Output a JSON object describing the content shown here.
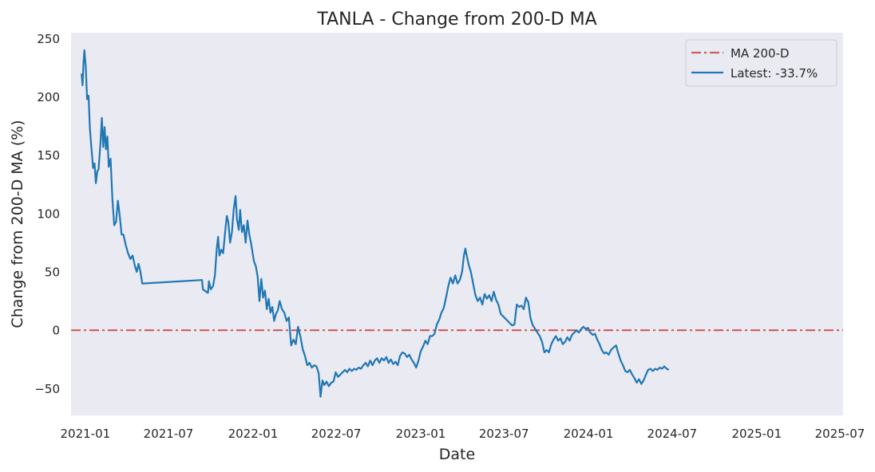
{
  "chart_data": {
    "type": "line",
    "title": "TANLA - Change from 200-D MA",
    "xlabel": "Date",
    "ylabel": "Change from 200-D MA (%)",
    "xlim": [
      "2020-12-01",
      "2025-07-08"
    ],
    "ylim": [
      -73,
      255
    ],
    "x_ticks": [
      "2021-01",
      "2021-07",
      "2022-01",
      "2022-07",
      "2023-01",
      "2023-07",
      "2024-01",
      "2024-07",
      "2025-01",
      "2025-07"
    ],
    "y_ticks": [
      -50,
      0,
      50,
      100,
      150,
      200,
      250
    ],
    "grid": false,
    "background": "#eaeaf2",
    "legend_position": "top-right",
    "reference_line": {
      "name": "MA 200-D",
      "y": 0,
      "color": "#cd5c5c",
      "style": "dash-dot"
    },
    "series": [
      {
        "name": "Latest: -33.7%",
        "color": "#1f77b4",
        "points": [
          [
            "2020-12-24",
            220
          ],
          [
            "2020-12-26",
            210
          ],
          [
            "2020-12-28",
            228
          ],
          [
            "2020-12-30",
            240
          ],
          [
            "2021-01-02",
            226
          ],
          [
            "2021-01-05",
            198
          ],
          [
            "2021-01-08",
            201
          ],
          [
            "2021-01-11",
            173
          ],
          [
            "2021-01-14",
            158
          ],
          [
            "2021-01-18",
            139
          ],
          [
            "2021-01-21",
            143
          ],
          [
            "2021-01-24",
            126
          ],
          [
            "2021-01-27",
            136
          ],
          [
            "2021-01-30",
            138
          ],
          [
            "2021-02-03",
            160
          ],
          [
            "2021-02-06",
            182
          ],
          [
            "2021-02-09",
            157
          ],
          [
            "2021-02-12",
            174
          ],
          [
            "2021-02-15",
            155
          ],
          [
            "2021-02-18",
            166
          ],
          [
            "2021-02-21",
            140
          ],
          [
            "2021-02-25",
            147
          ],
          [
            "2021-03-01",
            112
          ],
          [
            "2021-03-05",
            90
          ],
          [
            "2021-03-09",
            93
          ],
          [
            "2021-03-13",
            111
          ],
          [
            "2021-03-17",
            98
          ],
          [
            "2021-03-21",
            82
          ],
          [
            "2021-03-25",
            82
          ],
          [
            "2021-03-30",
            73
          ],
          [
            "2021-04-04",
            66
          ],
          [
            "2021-04-09",
            61
          ],
          [
            "2021-04-14",
            64
          ],
          [
            "2021-04-19",
            55
          ],
          [
            "2021-04-23",
            50
          ],
          [
            "2021-04-27",
            57
          ],
          [
            "2021-05-01",
            50
          ],
          [
            "2021-05-05",
            40
          ],
          [
            "2021-09-12",
            43
          ],
          [
            "2021-09-14",
            35
          ],
          [
            "2021-09-25",
            32
          ],
          [
            "2021-09-27",
            42
          ],
          [
            "2021-10-01",
            35
          ],
          [
            "2021-10-06",
            38
          ],
          [
            "2021-10-10",
            47
          ],
          [
            "2021-10-14",
            70
          ],
          [
            "2021-10-17",
            80
          ],
          [
            "2021-10-20",
            64
          ],
          [
            "2021-10-24",
            69
          ],
          [
            "2021-10-28",
            66
          ],
          [
            "2021-11-02",
            87
          ],
          [
            "2021-11-05",
            98
          ],
          [
            "2021-11-08",
            93
          ],
          [
            "2021-11-12",
            75
          ],
          [
            "2021-11-16",
            84
          ],
          [
            "2021-11-20",
            104
          ],
          [
            "2021-11-24",
            115
          ],
          [
            "2021-11-27",
            95
          ],
          [
            "2021-12-01",
            86
          ],
          [
            "2021-12-04",
            103
          ],
          [
            "2021-12-08",
            84
          ],
          [
            "2021-12-12",
            90
          ],
          [
            "2021-12-16",
            75
          ],
          [
            "2021-12-20",
            94
          ],
          [
            "2021-12-24",
            82
          ],
          [
            "2021-12-28",
            74
          ],
          [
            "2022-01-03",
            59
          ],
          [
            "2022-01-07",
            55
          ],
          [
            "2022-01-11",
            46
          ],
          [
            "2022-01-15",
            25
          ],
          [
            "2022-01-19",
            44
          ],
          [
            "2022-01-23",
            28
          ],
          [
            "2022-01-27",
            34
          ],
          [
            "2022-01-31",
            18
          ],
          [
            "2022-02-04",
            27
          ],
          [
            "2022-02-08",
            15
          ],
          [
            "2022-02-12",
            20
          ],
          [
            "2022-02-16",
            8
          ],
          [
            "2022-02-20",
            14
          ],
          [
            "2022-02-24",
            17
          ],
          [
            "2022-02-28",
            25
          ],
          [
            "2022-03-05",
            18
          ],
          [
            "2022-03-10",
            15
          ],
          [
            "2022-03-15",
            8
          ],
          [
            "2022-03-20",
            11
          ],
          [
            "2022-03-25",
            -13
          ],
          [
            "2022-03-30",
            -8
          ],
          [
            "2022-04-04",
            -12
          ],
          [
            "2022-04-09",
            3
          ],
          [
            "2022-04-14",
            -5
          ],
          [
            "2022-04-19",
            -16
          ],
          [
            "2022-04-24",
            -22
          ],
          [
            "2022-04-29",
            -30
          ],
          [
            "2022-05-04",
            -28
          ],
          [
            "2022-05-09",
            -32
          ],
          [
            "2022-05-14",
            -30
          ],
          [
            "2022-05-19",
            -31
          ],
          [
            "2022-05-24",
            -37
          ],
          [
            "2022-05-28",
            -57
          ],
          [
            "2022-06-01",
            -43
          ],
          [
            "2022-06-05",
            -47
          ],
          [
            "2022-06-10",
            -44
          ],
          [
            "2022-06-15",
            -48
          ],
          [
            "2022-06-20",
            -45
          ],
          [
            "2022-06-25",
            -44
          ],
          [
            "2022-06-30",
            -36
          ],
          [
            "2022-07-05",
            -40
          ],
          [
            "2022-07-10",
            -38
          ],
          [
            "2022-07-15",
            -36
          ],
          [
            "2022-07-20",
            -34
          ],
          [
            "2022-07-25",
            -36
          ],
          [
            "2022-07-30",
            -33
          ],
          [
            "2022-08-04",
            -35
          ],
          [
            "2022-08-09",
            -33
          ],
          [
            "2022-08-14",
            -34
          ],
          [
            "2022-08-19",
            -32
          ],
          [
            "2022-08-24",
            -33
          ],
          [
            "2022-08-29",
            -30
          ],
          [
            "2022-09-03",
            -28
          ],
          [
            "2022-09-08",
            -31
          ],
          [
            "2022-09-13",
            -26
          ],
          [
            "2022-09-18",
            -30
          ],
          [
            "2022-09-23",
            -26
          ],
          [
            "2022-09-28",
            -24
          ],
          [
            "2022-10-03",
            -28
          ],
          [
            "2022-10-08",
            -24
          ],
          [
            "2022-10-13",
            -26
          ],
          [
            "2022-10-18",
            -23
          ],
          [
            "2022-10-23",
            -28
          ],
          [
            "2022-10-28",
            -25
          ],
          [
            "2022-11-02",
            -29
          ],
          [
            "2022-11-07",
            -27
          ],
          [
            "2022-11-12",
            -30
          ],
          [
            "2022-11-17",
            -22
          ],
          [
            "2022-11-22",
            -19
          ],
          [
            "2022-11-27",
            -20
          ],
          [
            "2022-12-02",
            -23
          ],
          [
            "2022-12-07",
            -21
          ],
          [
            "2022-12-12",
            -25
          ],
          [
            "2022-12-17",
            -28
          ],
          [
            "2022-12-22",
            -32
          ],
          [
            "2022-12-27",
            -26
          ],
          [
            "2023-01-01",
            -18
          ],
          [
            "2023-01-06",
            -14
          ],
          [
            "2023-01-11",
            -9
          ],
          [
            "2023-01-16",
            -12
          ],
          [
            "2023-01-21",
            -5
          ],
          [
            "2023-01-26",
            -5
          ],
          [
            "2023-01-31",
            -3
          ],
          [
            "2023-02-05",
            5
          ],
          [
            "2023-02-10",
            9
          ],
          [
            "2023-02-15",
            15
          ],
          [
            "2023-02-20",
            19
          ],
          [
            "2023-02-25",
            28
          ],
          [
            "2023-03-02",
            38
          ],
          [
            "2023-03-07",
            45
          ],
          [
            "2023-03-12",
            40
          ],
          [
            "2023-03-17",
            47
          ],
          [
            "2023-03-22",
            40
          ],
          [
            "2023-03-27",
            43
          ],
          [
            "2023-04-01",
            50
          ],
          [
            "2023-04-05",
            64
          ],
          [
            "2023-04-08",
            70
          ],
          [
            "2023-04-12",
            62
          ],
          [
            "2023-04-16",
            55
          ],
          [
            "2023-04-20",
            50
          ],
          [
            "2023-04-25",
            40
          ],
          [
            "2023-04-30",
            30
          ],
          [
            "2023-05-05",
            25
          ],
          [
            "2023-05-10",
            28
          ],
          [
            "2023-05-15",
            22
          ],
          [
            "2023-05-20",
            31
          ],
          [
            "2023-05-25",
            27
          ],
          [
            "2023-05-30",
            30
          ],
          [
            "2023-06-04",
            25
          ],
          [
            "2023-06-09",
            33
          ],
          [
            "2023-06-14",
            26
          ],
          [
            "2023-06-19",
            22
          ],
          [
            "2023-06-24",
            14
          ],
          [
            "2023-06-29",
            12
          ],
          [
            "2023-07-04",
            10
          ],
          [
            "2023-07-09",
            8
          ],
          [
            "2023-07-14",
            6
          ],
          [
            "2023-07-19",
            4
          ],
          [
            "2023-07-24",
            5
          ],
          [
            "2023-07-29",
            22
          ],
          [
            "2023-08-03",
            20
          ],
          [
            "2023-08-08",
            21
          ],
          [
            "2023-08-13",
            18
          ],
          [
            "2023-08-18",
            28
          ],
          [
            "2023-08-23",
            24
          ],
          [
            "2023-08-28",
            10
          ],
          [
            "2023-09-02",
            4
          ],
          [
            "2023-09-07",
            1
          ],
          [
            "2023-09-12",
            -2
          ],
          [
            "2023-09-17",
            -5
          ],
          [
            "2023-09-22",
            -10
          ],
          [
            "2023-09-27",
            -19
          ],
          [
            "2023-10-02",
            -17
          ],
          [
            "2023-10-07",
            -19
          ],
          [
            "2023-10-12",
            -12
          ],
          [
            "2023-10-17",
            -8
          ],
          [
            "2023-10-22",
            -5
          ],
          [
            "2023-10-27",
            -9
          ],
          [
            "2023-11-01",
            -7
          ],
          [
            "2023-11-06",
            -12
          ],
          [
            "2023-11-11",
            -10
          ],
          [
            "2023-11-16",
            -6
          ],
          [
            "2023-11-21",
            -9
          ],
          [
            "2023-11-26",
            -4
          ],
          [
            "2023-12-01",
            -2
          ],
          [
            "2023-12-06",
            0
          ],
          [
            "2023-12-11",
            -2
          ],
          [
            "2023-12-16",
            1
          ],
          [
            "2023-12-21",
            3
          ],
          [
            "2023-12-26",
            1
          ],
          [
            "2023-12-31",
            2
          ],
          [
            "2024-01-05",
            -2
          ],
          [
            "2024-01-10",
            -4
          ],
          [
            "2024-01-15",
            -3
          ],
          [
            "2024-01-20",
            -8
          ],
          [
            "2024-01-25",
            -12
          ],
          [
            "2024-01-30",
            -17
          ],
          [
            "2024-02-04",
            -20
          ],
          [
            "2024-02-09",
            -19
          ],
          [
            "2024-02-14",
            -21
          ],
          [
            "2024-02-19",
            -17
          ],
          [
            "2024-02-24",
            -15
          ],
          [
            "2024-03-01",
            -13
          ],
          [
            "2024-03-06",
            -20
          ],
          [
            "2024-03-11",
            -26
          ],
          [
            "2024-03-16",
            -30
          ],
          [
            "2024-03-21",
            -35
          ],
          [
            "2024-03-26",
            -36
          ],
          [
            "2024-03-31",
            -34
          ],
          [
            "2024-04-05",
            -38
          ],
          [
            "2024-04-10",
            -41
          ],
          [
            "2024-04-15",
            -45
          ],
          [
            "2024-04-20",
            -42
          ],
          [
            "2024-04-25",
            -46
          ],
          [
            "2024-04-30",
            -43
          ],
          [
            "2024-05-05",
            -38
          ],
          [
            "2024-05-10",
            -34
          ],
          [
            "2024-05-15",
            -33
          ],
          [
            "2024-05-20",
            -35
          ],
          [
            "2024-05-25",
            -33
          ],
          [
            "2024-05-30",
            -34
          ],
          [
            "2024-06-04",
            -32
          ],
          [
            "2024-06-09",
            -33
          ],
          [
            "2024-06-14",
            -31
          ],
          [
            "2024-06-19",
            -33
          ],
          [
            "2024-06-24",
            -34
          ]
        ]
      }
    ]
  }
}
